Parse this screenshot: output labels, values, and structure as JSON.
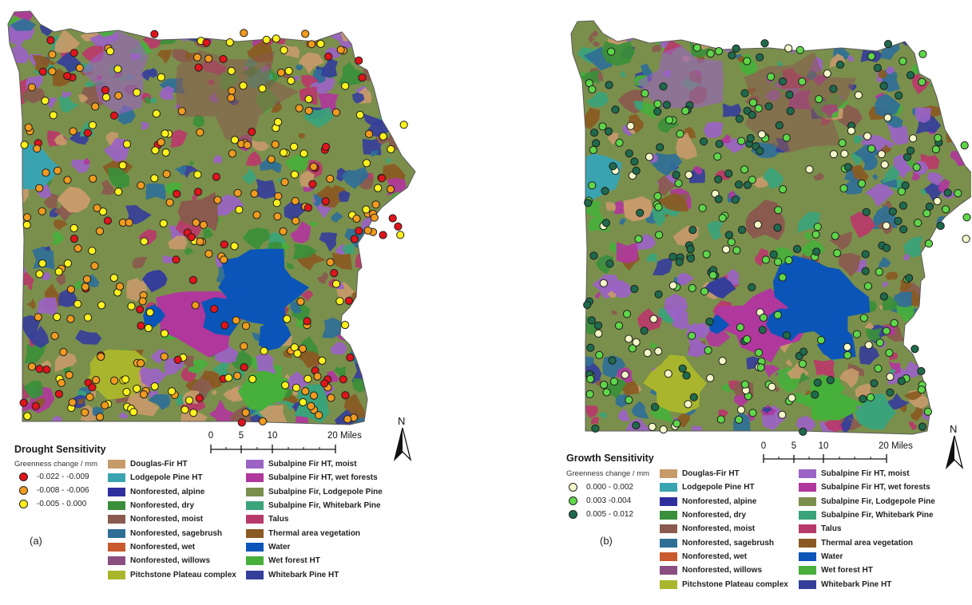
{
  "panels": [
    {
      "id": "a",
      "label": "(a)",
      "legend_title": "Drought Sensitivity",
      "legend_subtitle": "Greenness change / mm",
      "sensitivity_classes": [
        {
          "label": "-0.022 - -0.009",
          "color": "#e0141b"
        },
        {
          "label": "-0.008 - -0.006",
          "color": "#f09b1f"
        },
        {
          "label": "-0.005 - 0.000",
          "color": "#fff21c"
        }
      ],
      "scale": {
        "ticks": [
          "0",
          "5",
          "10",
          "20 Miles"
        ]
      },
      "north": "N"
    },
    {
      "id": "b",
      "label": "(b)",
      "legend_title": "Growth Sensitivity",
      "legend_subtitle": "Greenness change / mm",
      "sensitivity_classes": [
        {
          "label": "0.000 - 0.002",
          "color": "#f5f8c8"
        },
        {
          "label": "0.003 -0.004",
          "color": "#5fd64a"
        },
        {
          "label": "0.005 - 0.012",
          "color": "#1f6a4c"
        }
      ],
      "scale": {
        "ticks": [
          "0",
          "5",
          "10",
          "20 Miles"
        ]
      },
      "north": "N"
    }
  ],
  "vegetation_classes": [
    {
      "label": "Douglas-Fir HT",
      "color": "#c79a6a"
    },
    {
      "label": "Lodgepole Pine HT",
      "color": "#3aa3b0"
    },
    {
      "label": "Nonforested, alpine",
      "color": "#2e2f9c"
    },
    {
      "label": "Nonforested, dry",
      "color": "#3a8f3a"
    },
    {
      "label": "Nonforested, moist",
      "color": "#8a5a4e"
    },
    {
      "label": "Nonforested, sagebrush",
      "color": "#2f6f96"
    },
    {
      "label": "Nonforested, wet",
      "color": "#c85a2e"
    },
    {
      "label": "Nonforested, willows",
      "color": "#8a4f80"
    },
    {
      "label": "Pitchstone Plateau complex",
      "color": "#a9b52c"
    },
    {
      "label": "Subalpine Fir HT, moist",
      "color": "#9a63c4"
    },
    {
      "label": "Subalpine Fir HT, wet forests",
      "color": "#b0379c"
    },
    {
      "label": "Subalpine Fir, Lodgepole Pine",
      "color": "#7a8f4c"
    },
    {
      "label": "Subalpine Fir, Whitebark Pine",
      "color": "#3aa37a"
    },
    {
      "label": "Talus",
      "color": "#b83a6a"
    },
    {
      "label": "Thermal area vegetation",
      "color": "#8a5a22"
    },
    {
      "label": "Water",
      "color": "#0c55b8"
    },
    {
      "label": "Wet forest HT",
      "color": "#46b03a"
    },
    {
      "label": "Whitebark Pine HT",
      "color": "#353f9a"
    }
  ]
}
